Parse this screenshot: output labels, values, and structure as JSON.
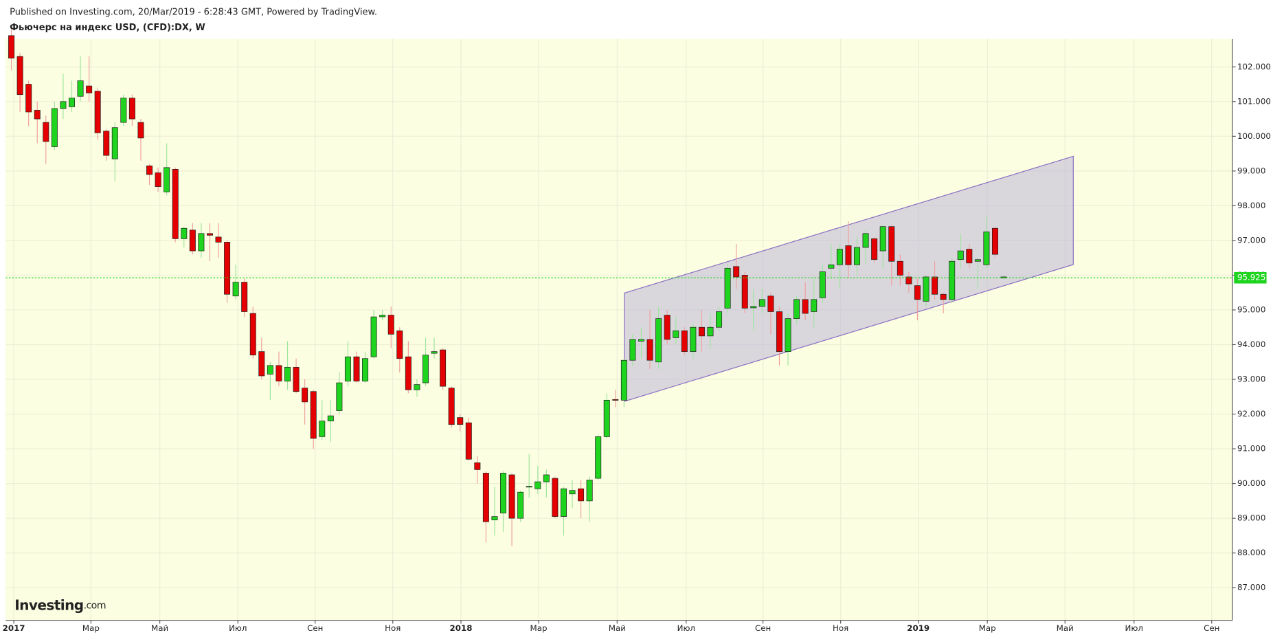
{
  "header": {
    "published": "Published on Investing.com, 20/Mar/2019 - 6:28:43 GMT, Powered by TradingView."
  },
  "logo": {
    "name": "Investing",
    "suffix": ".com"
  },
  "chart_data": {
    "type": "candlestick",
    "title": "Фьючерс на индекс USD, (CFD):DX, W",
    "up_color": "#1ed41e",
    "down_color": "#e40000",
    "up_wick": "#9fe59f",
    "down_wick": "#f0a0a0",
    "last_price": 95.925,
    "last_color": "#1ed41e",
    "grid": true,
    "xlim": [
      -0.66,
      141.5
    ],
    "xticks": [
      {
        "value": 0.28,
        "label": "2017"
      },
      {
        "value": 9.22,
        "label": "Мар"
      },
      {
        "value": 17.2,
        "label": "Май"
      },
      {
        "value": 26.25,
        "label": "Июл"
      },
      {
        "value": 35.2,
        "label": "Сен"
      },
      {
        "value": 44.2,
        "label": "Ноя"
      },
      {
        "value": 52.1,
        "label": "2018"
      },
      {
        "value": 61.1,
        "label": "Мар"
      },
      {
        "value": 70.2,
        "label": "Май"
      },
      {
        "value": 78.2,
        "label": "Июл"
      },
      {
        "value": 87.1,
        "label": "Сен"
      },
      {
        "value": 96.1,
        "label": "Ноя"
      },
      {
        "value": 105.1,
        "label": "2019"
      },
      {
        "value": 113.1,
        "label": "Мар"
      },
      {
        "value": 122.1,
        "label": "Май"
      },
      {
        "value": 130.1,
        "label": "Июл"
      },
      {
        "value": 139.1,
        "label": "Сен"
      }
    ],
    "ylim": [
      86.06,
      102.8
    ],
    "yticks": [
      {
        "value": 87,
        "label": "87.000"
      },
      {
        "value": 88,
        "label": "88.000"
      },
      {
        "value": 89,
        "label": "89.000"
      },
      {
        "value": 90,
        "label": "90.000"
      },
      {
        "value": 91,
        "label": "91.000"
      },
      {
        "value": 92,
        "label": "92.000"
      },
      {
        "value": 93,
        "label": "93.000"
      },
      {
        "value": 94,
        "label": "94.000"
      },
      {
        "value": 95,
        "label": "95.000"
      },
      {
        "value": 96,
        "label": "96.000"
      },
      {
        "value": 97,
        "label": "97.000"
      },
      {
        "value": 98,
        "label": "98.000"
      },
      {
        "value": 99,
        "label": "99.000"
      },
      {
        "value": 100,
        "label": "100.000"
      },
      {
        "value": 101,
        "label": "101.000"
      },
      {
        "value": 102,
        "label": "102.000"
      }
    ],
    "open": [
      102.9,
      102.3,
      101.5,
      100.75,
      100.4,
      99.7,
      100.8,
      100.85,
      101.15,
      101.45,
      101.3,
      100.15,
      99.35,
      100.4,
      101.1,
      100.4,
      99.15,
      98.95,
      98.4,
      99.05,
      97.05,
      97.3,
      96.7,
      97.2,
      97.1,
      96.95,
      95.4,
      95.8,
      94.9,
      93.8,
      93.15,
      93.4,
      92.95,
      93.35,
      92.75,
      92.65,
      91.35,
      91.8,
      92.1,
      92.95,
      93.65,
      92.95,
      93.65,
      94.8,
      94.85,
      94.4,
      93.65,
      92.7,
      92.9,
      93.75,
      93.85,
      92.75,
      91.9,
      91.75,
      90.6,
      90.3,
      88.95,
      89.15,
      90.25,
      89.0,
      89.9,
      89.85,
      90.05,
      90.15,
      89.05,
      89.7,
      89.85,
      89.5,
      90.15,
      91.35,
      92.42,
      92.4,
      93.55,
      94.1,
      94.15,
      93.5,
      94.85,
      94.2,
      94.4,
      93.8,
      94.5,
      94.25,
      94.5,
      95.05,
      96.25,
      96.0,
      95.06,
      95.1,
      95.4,
      94.95,
      93.8,
      94.75,
      95.3,
      94.95,
      95.35,
      96.2,
      96.3,
      96.85,
      96.3,
      96.8,
      97.05,
      96.7,
      97.4,
      96.4,
      95.95,
      95.7,
      95.25,
      95.95,
      95.45,
      95.3,
      96.45,
      96.75,
      96.4,
      96.3,
      97.35,
      95.92
    ],
    "high": [
      103.2,
      102.4,
      101.6,
      101.0,
      100.6,
      101.0,
      101.8,
      101.6,
      102.3,
      102.3,
      101.4,
      100.2,
      100.4,
      101.2,
      101.2,
      100.5,
      99.2,
      99.1,
      99.8,
      99.1,
      97.4,
      97.5,
      97.5,
      97.5,
      97.5,
      97.0,
      96.3,
      95.9,
      95.1,
      94.2,
      93.5,
      93.8,
      94.1,
      93.6,
      93.0,
      92.7,
      92.4,
      92.4,
      93.2,
      94.1,
      93.8,
      93.8,
      95.0,
      95.0,
      95.1,
      94.5,
      94.1,
      93.0,
      94.2,
      94.2,
      93.9,
      92.8,
      92.0,
      91.9,
      90.8,
      90.35,
      89.9,
      90.35,
      90.3,
      89.8,
      90.85,
      90.5,
      90.4,
      90.2,
      89.9,
      90.1,
      90.1,
      90.2,
      91.4,
      92.6,
      92.7,
      93.6,
      94.3,
      94.5,
      95.0,
      95.1,
      95.0,
      94.8,
      94.5,
      94.6,
      95.0,
      94.9,
      95.1,
      96.3,
      96.9,
      96.1,
      95.6,
      95.6,
      95.5,
      95.1,
      94.9,
      95.4,
      95.8,
      95.9,
      96.3,
      96.9,
      96.9,
      97.55,
      97.1,
      97.3,
      97.1,
      97.45,
      97.45,
      96.6,
      96.1,
      95.9,
      96.0,
      96.4,
      95.5,
      96.5,
      97.2,
      96.9,
      96.5,
      97.7,
      97.4,
      96.0
    ],
    "low": [
      101.9,
      100.7,
      100.3,
      99.8,
      99.2,
      99.6,
      100.5,
      100.7,
      101.0,
      101.0,
      99.9,
      99.3,
      98.7,
      100.3,
      100.3,
      99.3,
      98.6,
      98.4,
      98.3,
      96.95,
      96.8,
      96.6,
      96.5,
      96.4,
      96.5,
      95.2,
      95.3,
      94.8,
      93.6,
      93.0,
      92.4,
      92.8,
      92.7,
      92.6,
      91.7,
      91.0,
      91.25,
      91.2,
      92.0,
      92.8,
      92.9,
      92.9,
      93.6,
      94.7,
      93.9,
      93.2,
      92.6,
      92.5,
      92.8,
      93.6,
      92.7,
      91.6,
      91.5,
      90.65,
      90.0,
      88.3,
      88.5,
      88.6,
      88.2,
      88.9,
      89.6,
      89.7,
      89.6,
      89.0,
      88.5,
      89.3,
      89.0,
      88.9,
      90.1,
      91.3,
      92.2,
      92.2,
      93.4,
      93.6,
      93.3,
      93.3,
      94.0,
      94.0,
      93.7,
      93.6,
      93.8,
      93.9,
      94.4,
      94.9,
      95.6,
      94.9,
      94.4,
      94.9,
      94.3,
      93.4,
      93.4,
      94.6,
      94.7,
      94.5,
      95.2,
      95.9,
      95.6,
      95.9,
      96.0,
      96.3,
      96.35,
      96.2,
      95.7,
      95.7,
      95.5,
      94.7,
      95.1,
      95.3,
      94.9,
      95.2,
      96.2,
      96.2,
      95.6,
      96.2,
      96.5,
      95.9
    ],
    "close": [
      102.25,
      101.2,
      100.7,
      100.5,
      99.85,
      100.8,
      101.0,
      101.1,
      101.6,
      101.25,
      100.1,
      99.45,
      100.25,
      101.1,
      100.5,
      99.95,
      98.9,
      98.55,
      99.1,
      97.05,
      97.35,
      96.7,
      97.2,
      97.15,
      96.95,
      95.45,
      95.8,
      94.95,
      93.7,
      93.1,
      93.4,
      92.95,
      93.35,
      92.65,
      92.35,
      91.3,
      91.8,
      91.95,
      92.9,
      93.65,
      92.95,
      93.6,
      94.8,
      94.85,
      94.3,
      93.6,
      92.7,
      92.85,
      93.7,
      93.8,
      92.8,
      91.7,
      91.7,
      90.7,
      90.4,
      88.9,
      89.05,
      90.3,
      89.0,
      89.75,
      89.92,
      90.05,
      90.25,
      89.05,
      89.85,
      89.8,
      89.5,
      90.1,
      91.35,
      92.4,
      92.4,
      93.55,
      94.15,
      94.15,
      93.55,
      94.75,
      94.15,
      94.4,
      93.8,
      94.5,
      94.25,
      94.5,
      94.95,
      96.2,
      95.95,
      95.05,
      95.1,
      95.3,
      94.95,
      93.8,
      94.75,
      95.3,
      94.9,
      95.3,
      96.1,
      96.3,
      96.75,
      96.3,
      96.8,
      97.2,
      96.45,
      97.4,
      96.4,
      96.0,
      95.75,
      95.3,
      95.95,
      95.45,
      95.3,
      96.4,
      96.7,
      96.35,
      96.45,
      97.25,
      96.6,
      95.95
    ]
  }
}
